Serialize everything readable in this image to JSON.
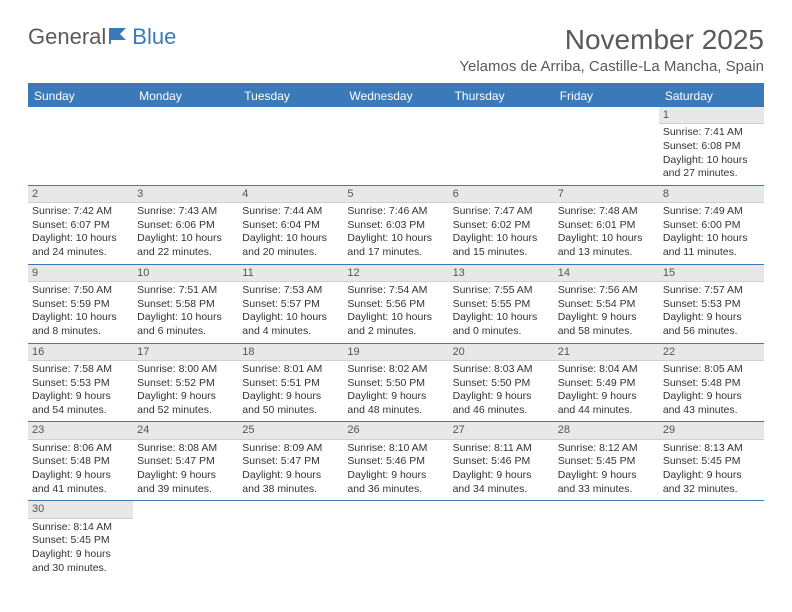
{
  "logo": {
    "part1": "General",
    "part2": "Blue"
  },
  "title": "November 2025",
  "location": "Yelamos de Arriba, Castille-La Mancha, Spain",
  "weekdays": [
    "Sunday",
    "Monday",
    "Tuesday",
    "Wednesday",
    "Thursday",
    "Friday",
    "Saturday"
  ],
  "colors": {
    "header_bg": "#3a7ab8",
    "header_text": "#ffffff",
    "daynum_bg": "#e8e8e8",
    "border": "#3a7ab8",
    "title_color": "#5a5a5a"
  },
  "font": {
    "title_size": 28,
    "location_size": 15,
    "weekday_size": 12,
    "cell_size": 10.5
  },
  "weeks": [
    [
      null,
      null,
      null,
      null,
      null,
      null,
      {
        "n": "1",
        "sr": "Sunrise: 7:41 AM",
        "ss": "Sunset: 6:08 PM",
        "dl1": "Daylight: 10 hours",
        "dl2": "and 27 minutes."
      }
    ],
    [
      {
        "n": "2",
        "sr": "Sunrise: 7:42 AM",
        "ss": "Sunset: 6:07 PM",
        "dl1": "Daylight: 10 hours",
        "dl2": "and 24 minutes."
      },
      {
        "n": "3",
        "sr": "Sunrise: 7:43 AM",
        "ss": "Sunset: 6:06 PM",
        "dl1": "Daylight: 10 hours",
        "dl2": "and 22 minutes."
      },
      {
        "n": "4",
        "sr": "Sunrise: 7:44 AM",
        "ss": "Sunset: 6:04 PM",
        "dl1": "Daylight: 10 hours",
        "dl2": "and 20 minutes."
      },
      {
        "n": "5",
        "sr": "Sunrise: 7:46 AM",
        "ss": "Sunset: 6:03 PM",
        "dl1": "Daylight: 10 hours",
        "dl2": "and 17 minutes."
      },
      {
        "n": "6",
        "sr": "Sunrise: 7:47 AM",
        "ss": "Sunset: 6:02 PM",
        "dl1": "Daylight: 10 hours",
        "dl2": "and 15 minutes."
      },
      {
        "n": "7",
        "sr": "Sunrise: 7:48 AM",
        "ss": "Sunset: 6:01 PM",
        "dl1": "Daylight: 10 hours",
        "dl2": "and 13 minutes."
      },
      {
        "n": "8",
        "sr": "Sunrise: 7:49 AM",
        "ss": "Sunset: 6:00 PM",
        "dl1": "Daylight: 10 hours",
        "dl2": "and 11 minutes."
      }
    ],
    [
      {
        "n": "9",
        "sr": "Sunrise: 7:50 AM",
        "ss": "Sunset: 5:59 PM",
        "dl1": "Daylight: 10 hours",
        "dl2": "and 8 minutes."
      },
      {
        "n": "10",
        "sr": "Sunrise: 7:51 AM",
        "ss": "Sunset: 5:58 PM",
        "dl1": "Daylight: 10 hours",
        "dl2": "and 6 minutes."
      },
      {
        "n": "11",
        "sr": "Sunrise: 7:53 AM",
        "ss": "Sunset: 5:57 PM",
        "dl1": "Daylight: 10 hours",
        "dl2": "and 4 minutes."
      },
      {
        "n": "12",
        "sr": "Sunrise: 7:54 AM",
        "ss": "Sunset: 5:56 PM",
        "dl1": "Daylight: 10 hours",
        "dl2": "and 2 minutes."
      },
      {
        "n": "13",
        "sr": "Sunrise: 7:55 AM",
        "ss": "Sunset: 5:55 PM",
        "dl1": "Daylight: 10 hours",
        "dl2": "and 0 minutes."
      },
      {
        "n": "14",
        "sr": "Sunrise: 7:56 AM",
        "ss": "Sunset: 5:54 PM",
        "dl1": "Daylight: 9 hours",
        "dl2": "and 58 minutes."
      },
      {
        "n": "15",
        "sr": "Sunrise: 7:57 AM",
        "ss": "Sunset: 5:53 PM",
        "dl1": "Daylight: 9 hours",
        "dl2": "and 56 minutes."
      }
    ],
    [
      {
        "n": "16",
        "sr": "Sunrise: 7:58 AM",
        "ss": "Sunset: 5:53 PM",
        "dl1": "Daylight: 9 hours",
        "dl2": "and 54 minutes."
      },
      {
        "n": "17",
        "sr": "Sunrise: 8:00 AM",
        "ss": "Sunset: 5:52 PM",
        "dl1": "Daylight: 9 hours",
        "dl2": "and 52 minutes."
      },
      {
        "n": "18",
        "sr": "Sunrise: 8:01 AM",
        "ss": "Sunset: 5:51 PM",
        "dl1": "Daylight: 9 hours",
        "dl2": "and 50 minutes."
      },
      {
        "n": "19",
        "sr": "Sunrise: 8:02 AM",
        "ss": "Sunset: 5:50 PM",
        "dl1": "Daylight: 9 hours",
        "dl2": "and 48 minutes."
      },
      {
        "n": "20",
        "sr": "Sunrise: 8:03 AM",
        "ss": "Sunset: 5:50 PM",
        "dl1": "Daylight: 9 hours",
        "dl2": "and 46 minutes."
      },
      {
        "n": "21",
        "sr": "Sunrise: 8:04 AM",
        "ss": "Sunset: 5:49 PM",
        "dl1": "Daylight: 9 hours",
        "dl2": "and 44 minutes."
      },
      {
        "n": "22",
        "sr": "Sunrise: 8:05 AM",
        "ss": "Sunset: 5:48 PM",
        "dl1": "Daylight: 9 hours",
        "dl2": "and 43 minutes."
      }
    ],
    [
      {
        "n": "23",
        "sr": "Sunrise: 8:06 AM",
        "ss": "Sunset: 5:48 PM",
        "dl1": "Daylight: 9 hours",
        "dl2": "and 41 minutes."
      },
      {
        "n": "24",
        "sr": "Sunrise: 8:08 AM",
        "ss": "Sunset: 5:47 PM",
        "dl1": "Daylight: 9 hours",
        "dl2": "and 39 minutes."
      },
      {
        "n": "25",
        "sr": "Sunrise: 8:09 AM",
        "ss": "Sunset: 5:47 PM",
        "dl1": "Daylight: 9 hours",
        "dl2": "and 38 minutes."
      },
      {
        "n": "26",
        "sr": "Sunrise: 8:10 AM",
        "ss": "Sunset: 5:46 PM",
        "dl1": "Daylight: 9 hours",
        "dl2": "and 36 minutes."
      },
      {
        "n": "27",
        "sr": "Sunrise: 8:11 AM",
        "ss": "Sunset: 5:46 PM",
        "dl1": "Daylight: 9 hours",
        "dl2": "and 34 minutes."
      },
      {
        "n": "28",
        "sr": "Sunrise: 8:12 AM",
        "ss": "Sunset: 5:45 PM",
        "dl1": "Daylight: 9 hours",
        "dl2": "and 33 minutes."
      },
      {
        "n": "29",
        "sr": "Sunrise: 8:13 AM",
        "ss": "Sunset: 5:45 PM",
        "dl1": "Daylight: 9 hours",
        "dl2": "and 32 minutes."
      }
    ],
    [
      {
        "n": "30",
        "sr": "Sunrise: 8:14 AM",
        "ss": "Sunset: 5:45 PM",
        "dl1": "Daylight: 9 hours",
        "dl2": "and 30 minutes."
      },
      null,
      null,
      null,
      null,
      null,
      null
    ]
  ]
}
